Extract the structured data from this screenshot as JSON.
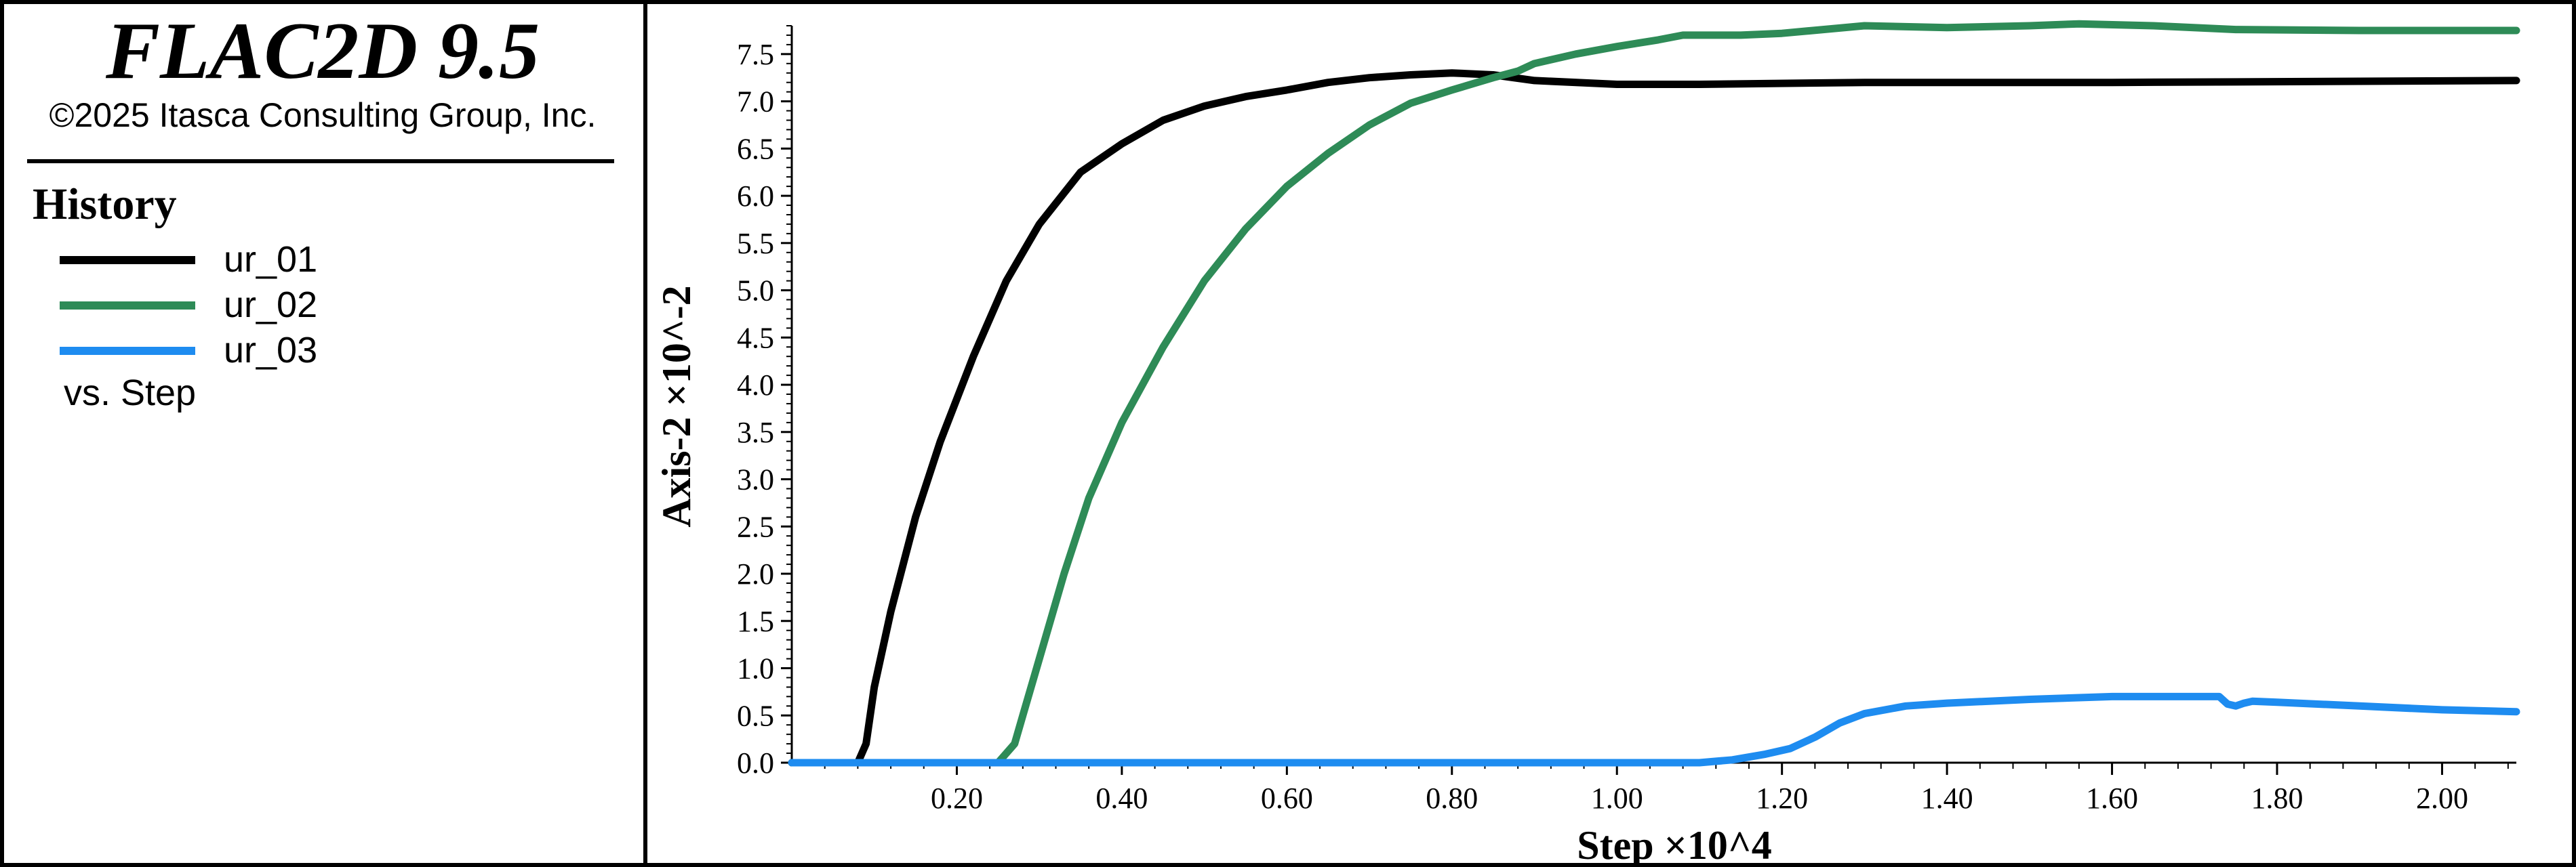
{
  "app": {
    "title": "FLAC2D 9.5",
    "copyright": "©2025 Itasca Consulting Group, Inc."
  },
  "legend": {
    "heading": "History",
    "items": [
      {
        "label": "ur_01",
        "color": "#000000"
      },
      {
        "label": "ur_02",
        "color": "#2e8b57"
      },
      {
        "label": "ur_03",
        "color": "#1e8cf0"
      }
    ],
    "vs_label": "vs. Step"
  },
  "chart_data": {
    "type": "line",
    "xlabel": "Step ×10^4",
    "ylabel": "Axis-2 ×10^-2",
    "xlim": [
      0,
      2.09
    ],
    "ylim": [
      0,
      7.8
    ],
    "xticks": [
      "0.20",
      "0.40",
      "0.60",
      "0.80",
      "1.00",
      "1.20",
      "1.40",
      "1.60",
      "1.80",
      "2.00"
    ],
    "yticks": [
      "0.0",
      "0.5",
      "1.0",
      "1.5",
      "2.0",
      "2.5",
      "3.0",
      "3.5",
      "4.0",
      "4.5",
      "5.0",
      "5.5",
      "6.0",
      "6.5",
      "7.0",
      "7.5"
    ],
    "grid": false,
    "series": [
      {
        "name": "ur_01",
        "color": "#000000",
        "x": [
          0,
          0.08,
          0.09,
          0.1,
          0.12,
          0.15,
          0.18,
          0.22,
          0.26,
          0.3,
          0.35,
          0.4,
          0.45,
          0.5,
          0.55,
          0.6,
          0.65,
          0.7,
          0.75,
          0.8,
          0.85,
          0.9,
          1.0,
          1.1,
          1.3,
          1.6,
          2.09
        ],
        "y": [
          0,
          0,
          0.2,
          0.8,
          1.6,
          2.6,
          3.4,
          4.3,
          5.1,
          5.7,
          6.25,
          6.55,
          6.8,
          6.95,
          7.05,
          7.12,
          7.2,
          7.25,
          7.28,
          7.3,
          7.28,
          7.22,
          7.18,
          7.18,
          7.2,
          7.2,
          7.22
        ]
      },
      {
        "name": "ur_02",
        "color": "#2e8b57",
        "x": [
          0,
          0.25,
          0.27,
          0.28,
          0.3,
          0.33,
          0.36,
          0.4,
          0.45,
          0.5,
          0.55,
          0.6,
          0.65,
          0.7,
          0.75,
          0.8,
          0.85,
          0.88,
          0.9,
          0.95,
          1.0,
          1.05,
          1.08,
          1.15,
          1.2,
          1.25,
          1.3,
          1.4,
          1.5,
          1.56,
          1.65,
          1.75,
          1.9,
          2.09
        ],
        "y": [
          0,
          0,
          0.2,
          0.5,
          1.1,
          2.0,
          2.8,
          3.6,
          4.4,
          5.1,
          5.65,
          6.1,
          6.45,
          6.75,
          6.98,
          7.12,
          7.25,
          7.32,
          7.4,
          7.5,
          7.58,
          7.65,
          7.7,
          7.7,
          7.72,
          7.76,
          7.8,
          7.78,
          7.8,
          7.82,
          7.8,
          7.76,
          7.75,
          7.75
        ]
      },
      {
        "name": "ur_03",
        "color": "#1e8cf0",
        "x": [
          0,
          1.1,
          1.14,
          1.18,
          1.21,
          1.24,
          1.27,
          1.3,
          1.35,
          1.4,
          1.5,
          1.6,
          1.7,
          1.73,
          1.74,
          1.75,
          1.76,
          1.77,
          1.8,
          1.9,
          2.0,
          2.09
        ],
        "y": [
          0,
          0,
          0.03,
          0.09,
          0.15,
          0.27,
          0.42,
          0.52,
          0.6,
          0.63,
          0.67,
          0.7,
          0.7,
          0.7,
          0.62,
          0.6,
          0.63,
          0.65,
          0.64,
          0.6,
          0.56,
          0.54
        ]
      }
    ]
  }
}
